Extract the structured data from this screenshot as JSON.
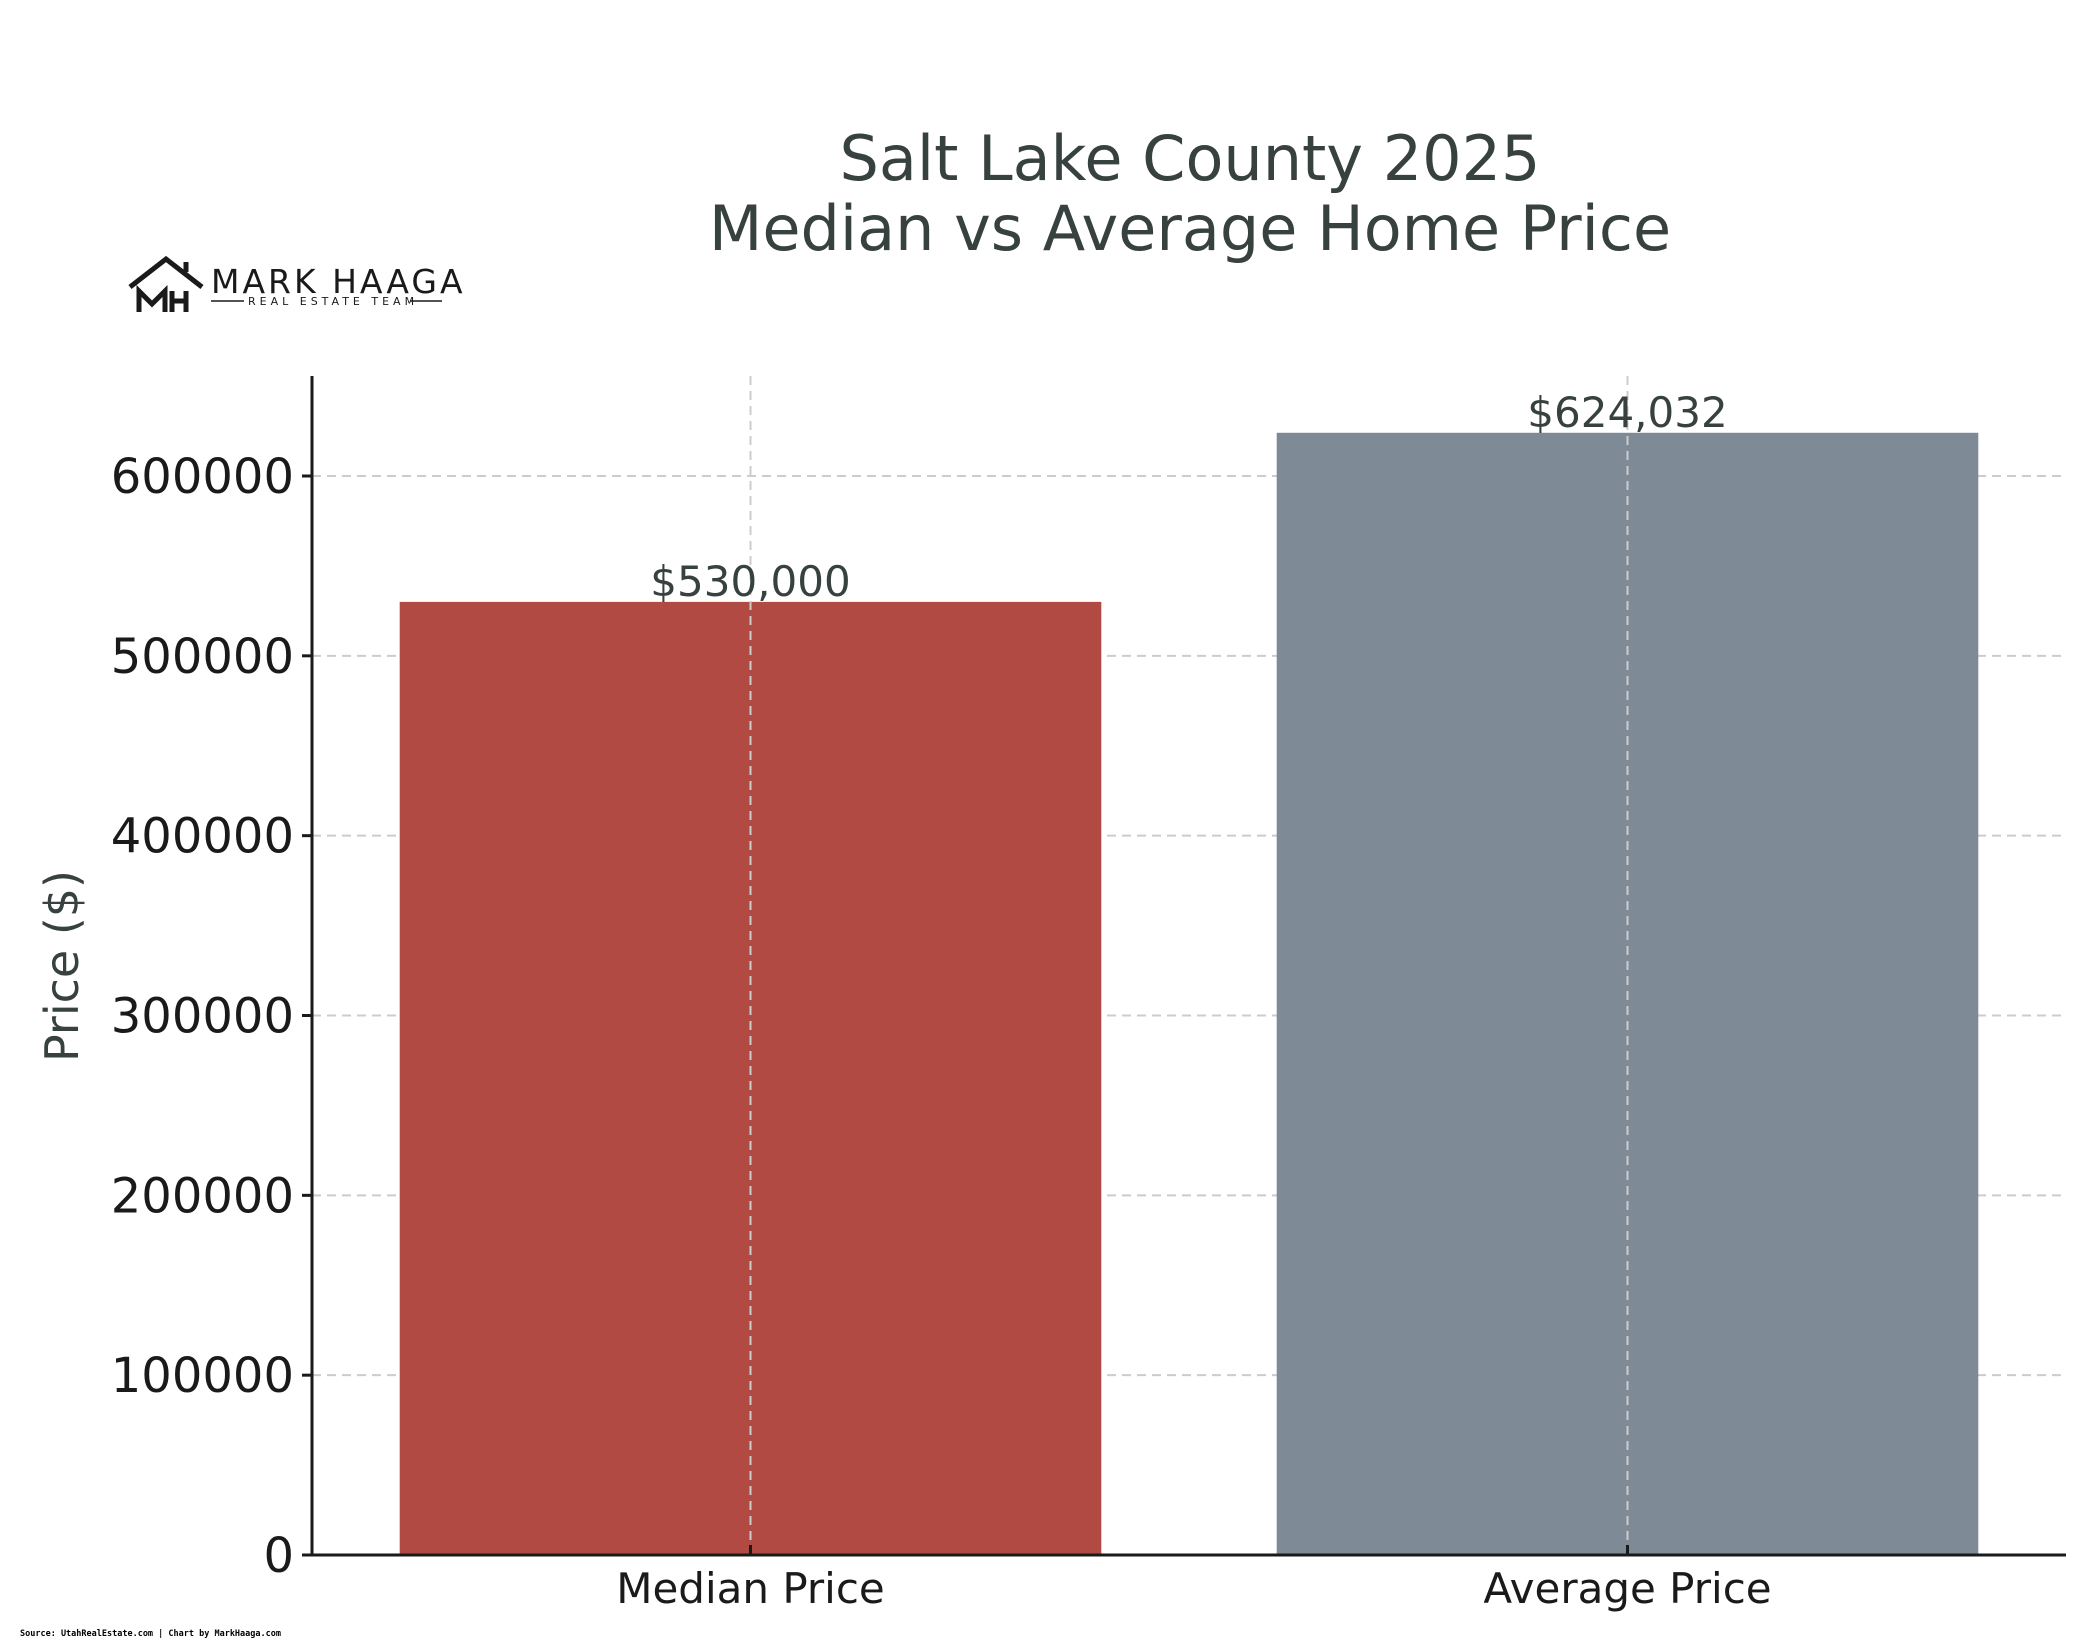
{
  "logo": {
    "monogram": "MH",
    "name": "MARK HAAGA",
    "tagline": "REAL ESTATE TEAM"
  },
  "source": "Source: UtahRealEstate.com | Chart by MarkHaaga.com",
  "colors": {
    "median_bar": "#b04a43",
    "average_bar": "#7f8a97",
    "title": "#37413f",
    "grid": "#cccccc"
  },
  "chart_data": {
    "type": "bar",
    "title": [
      "Salt Lake County 2025",
      "Median vs Average Home Price"
    ],
    "xlabel": "",
    "ylabel": "Price ($)",
    "categories": [
      "Median Price",
      "Average Price"
    ],
    "values": [
      530000,
      624032
    ],
    "data_labels": [
      "$530,000",
      "$624,032"
    ],
    "bar_colors": [
      "#b04a43",
      "#7f8a97"
    ],
    "ylim": [
      0,
      655000
    ],
    "yticks": [
      0,
      100000,
      200000,
      300000,
      400000,
      500000,
      600000
    ],
    "ytick_labels": [
      "0",
      "100000",
      "200000",
      "300000",
      "400000",
      "500000",
      "600000"
    ],
    "grid": true,
    "grid_style": "dashed",
    "legend": "none"
  }
}
